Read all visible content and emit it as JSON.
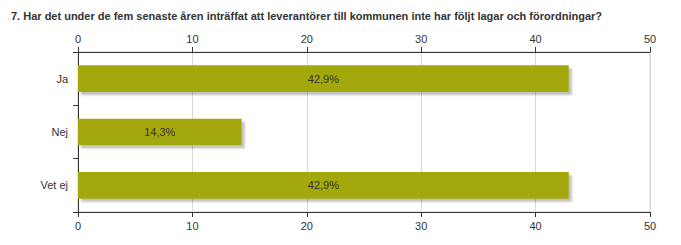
{
  "chart_data": {
    "type": "bar",
    "orientation": "horizontal",
    "title": "7. Har det under de fem senaste åren inträffat att leverantörer till kommunen inte har följt lagar och förordningar?",
    "categories": [
      "Ja",
      "Nej",
      "Vet ej"
    ],
    "values": [
      42.9,
      14.3,
      42.9
    ],
    "value_labels": [
      "42,9%",
      "14,3%",
      "42,9%"
    ],
    "data_labels": true,
    "color": "#a3a80f",
    "xlim": [
      0,
      50
    ],
    "xticks": [
      0,
      10,
      20,
      30,
      40,
      50
    ],
    "grid": true
  }
}
